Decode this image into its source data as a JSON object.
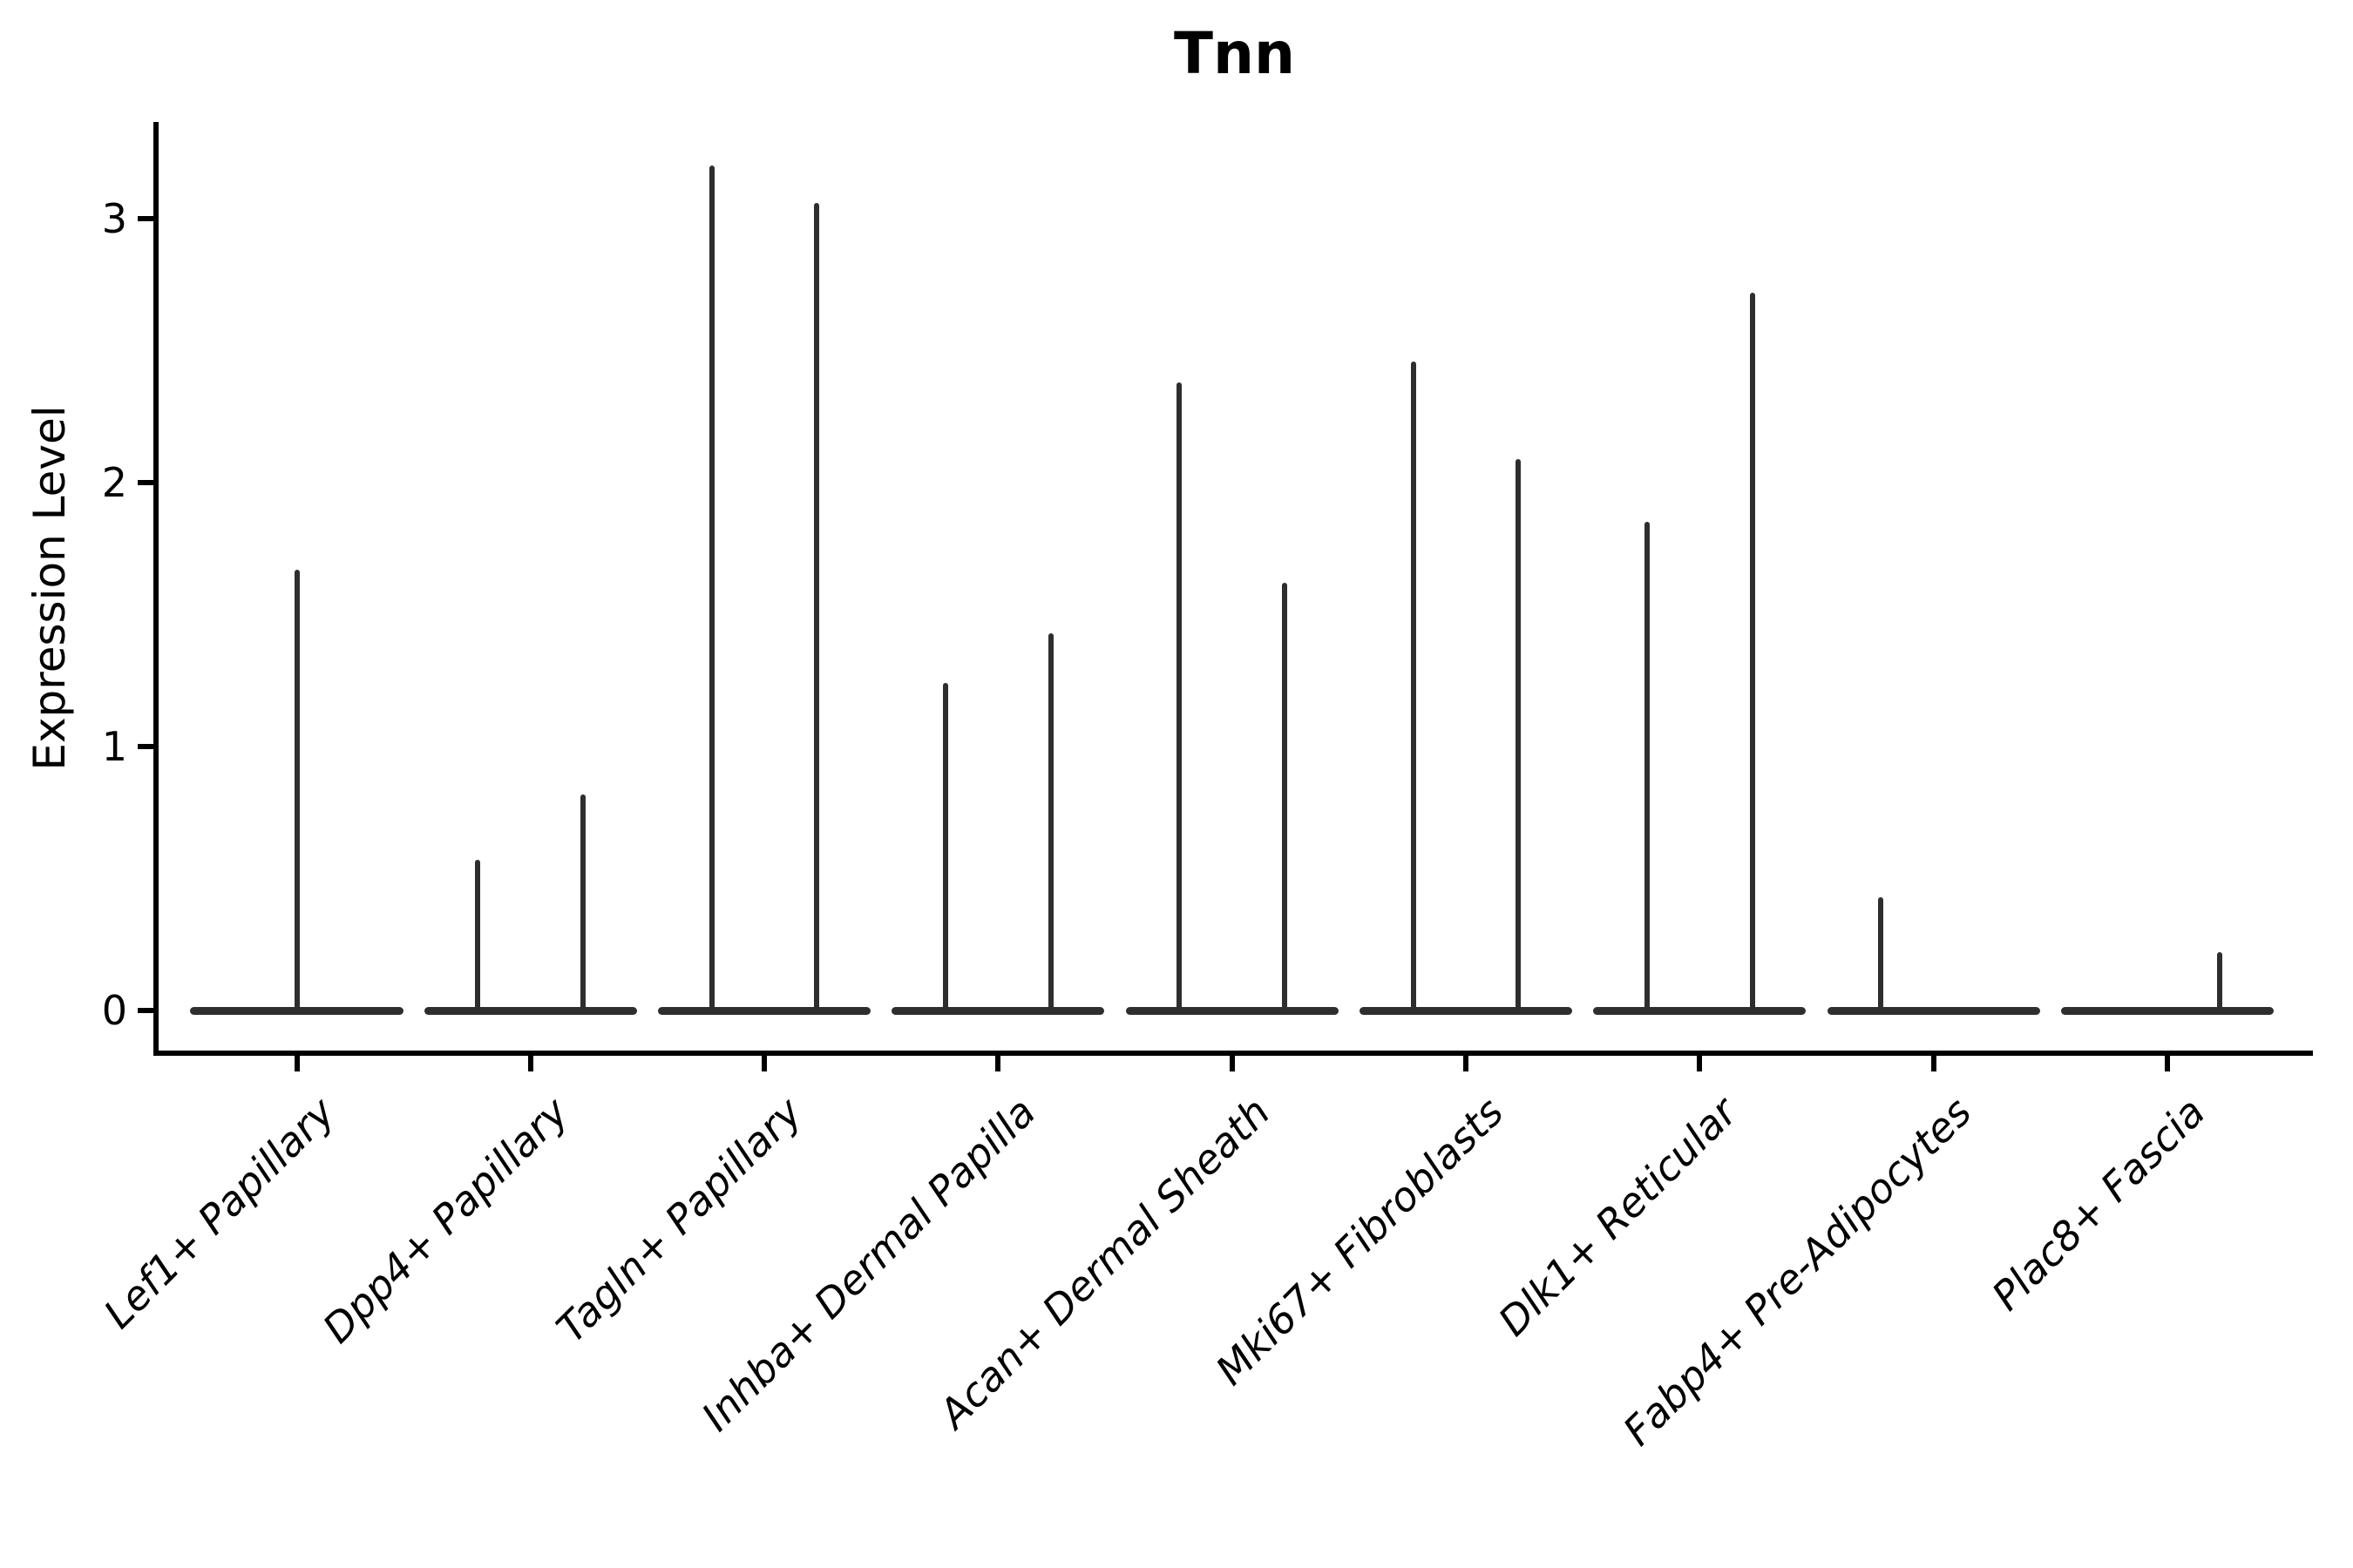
{
  "figure": {
    "background": "#ffffff",
    "ink_color": "#000000",
    "violin_color": "#2e2e2e"
  },
  "chart_data": {
    "type": "violin",
    "title": "Tnn",
    "ylabel": "Expression Level",
    "xlabel": "",
    "y_ticks": [
      "0",
      "1",
      "2",
      "3"
    ],
    "ylim": [
      -0.16,
      3.37
    ],
    "grid": false,
    "legend": "none",
    "x_tick_angle": 45,
    "x_tick_fontstyle": "italic",
    "categories": [
      "Lef1+ Papillary",
      "Dpp4+ Papillary",
      "Tagln+ Papillary",
      "Inhba+ Dermal Papilla",
      "Acan+ Dermal Sheath",
      "Mki67+ Fibroblasts",
      "Dlk1+ Reticular",
      "Fabp4+ Pre-Adipocytes",
      "Plac8+ Fascia"
    ],
    "zero_line_halfwidth": 0.455,
    "violins": [
      {
        "category": "Lef1+ Papillary",
        "spikes": [
          {
            "pos": 0.0,
            "max_expression": 1.67
          }
        ]
      },
      {
        "category": "Dpp4+ Papillary",
        "spikes": [
          {
            "pos": -0.225,
            "max_expression": 0.57
          },
          {
            "pos": 0.225,
            "max_expression": 0.82
          }
        ]
      },
      {
        "category": "Tagln+ Papillary",
        "spikes": [
          {
            "pos": -0.225,
            "max_expression": 3.2
          },
          {
            "pos": 0.225,
            "max_expression": 3.06
          }
        ]
      },
      {
        "category": "Inhba+ Dermal Papilla",
        "spikes": [
          {
            "pos": -0.225,
            "max_expression": 1.24
          },
          {
            "pos": 0.225,
            "max_expression": 1.43
          }
        ]
      },
      {
        "category": "Acan+ Dermal Sheath",
        "spikes": [
          {
            "pos": -0.225,
            "max_expression": 2.38
          },
          {
            "pos": 0.225,
            "max_expression": 1.62
          }
        ]
      },
      {
        "category": "Mki67+ Fibroblasts",
        "spikes": [
          {
            "pos": -0.225,
            "max_expression": 2.46
          },
          {
            "pos": 0.225,
            "max_expression": 2.09
          }
        ]
      },
      {
        "category": "Dlk1+ Reticular",
        "spikes": [
          {
            "pos": -0.225,
            "max_expression": 1.85
          },
          {
            "pos": 0.225,
            "max_expression": 2.72
          }
        ]
      },
      {
        "category": "Fabp4+ Pre-Adipocytes",
        "spikes": [
          {
            "pos": -0.225,
            "max_expression": 0.43
          }
        ]
      },
      {
        "category": "Plac8+ Fascia",
        "spikes": [
          {
            "pos": 0.225,
            "max_expression": 0.22
          }
        ]
      }
    ]
  }
}
